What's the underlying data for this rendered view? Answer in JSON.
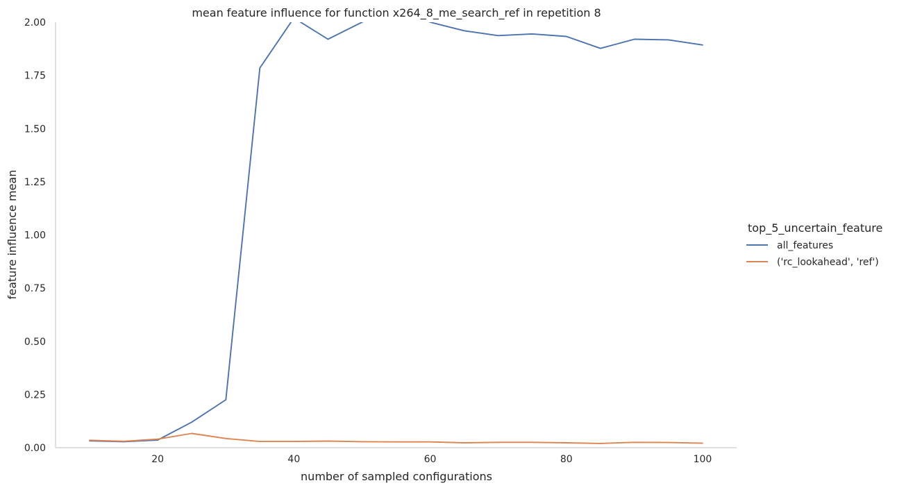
{
  "chart_data": {
    "type": "line",
    "title": "mean feature influence for function x264_8_me_search_ref in repetition 8",
    "xlabel": "number of sampled configurations",
    "ylabel": "feature influence mean",
    "xlim": [
      5,
      105
    ],
    "ylim": [
      0,
      2.0
    ],
    "xticks": [
      20,
      40,
      60,
      80,
      100
    ],
    "yticks": [
      0.0,
      0.25,
      0.5,
      0.75,
      1.0,
      1.25,
      1.5,
      1.75,
      2.0
    ],
    "ytick_labels": [
      "0.00",
      "0.25",
      "0.50",
      "0.75",
      "1.00",
      "1.25",
      "1.50",
      "1.75",
      "2.00"
    ],
    "grid": false,
    "legend": {
      "title": "top_5_uncertain_feature",
      "placement": "right"
    },
    "x": [
      10,
      15,
      20,
      25,
      30,
      35,
      40,
      45,
      50,
      55,
      60,
      65,
      70,
      75,
      80,
      85,
      90,
      95,
      100
    ],
    "series": [
      {
        "name": "all_features",
        "color": "#4c72b0",
        "values": [
          0.032,
          0.028,
          0.036,
          0.12,
          0.225,
          1.785,
          2.02,
          1.92,
          2.0,
          2.08,
          2.0,
          1.96,
          1.937,
          1.945,
          1.933,
          1.877,
          1.92,
          1.917,
          1.893
        ]
      },
      {
        "name": "('rc_lookahead', 'ref')",
        "color": "#dd8452",
        "values": [
          0.035,
          0.03,
          0.04,
          0.067,
          0.043,
          0.029,
          0.029,
          0.031,
          0.028,
          0.027,
          0.027,
          0.023,
          0.025,
          0.025,
          0.023,
          0.02,
          0.025,
          0.024,
          0.021
        ]
      }
    ]
  }
}
